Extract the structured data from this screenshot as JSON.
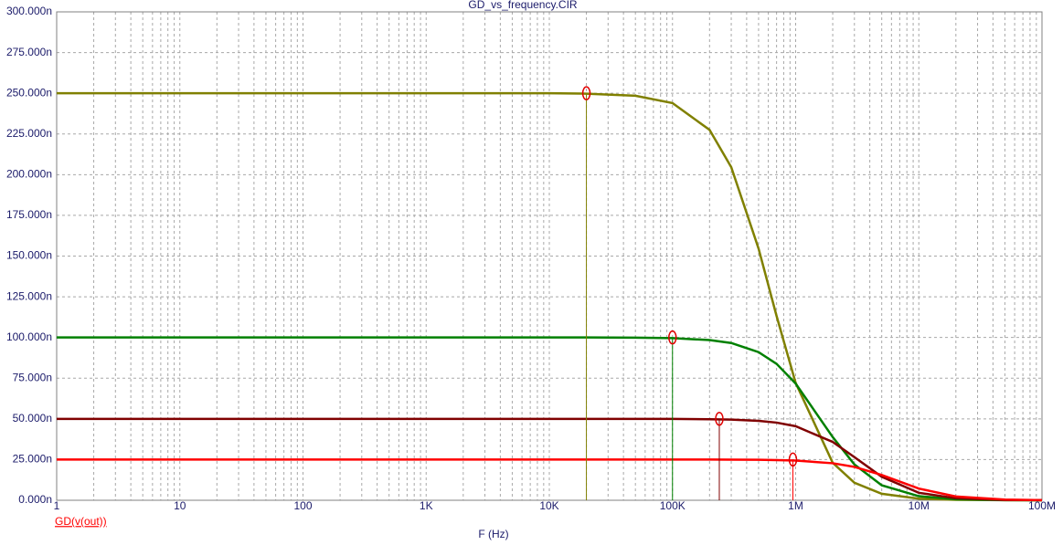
{
  "chart_data": {
    "type": "line",
    "title": "GD_vs_frequency.CIR",
    "x_label": "F (Hz)",
    "y_label": "GD(v(out))",
    "log_x": true,
    "grid": true,
    "xlim": [
      1,
      100000000
    ],
    "xticks": [
      1,
      10,
      100,
      {
        "value": 1000,
        "label": "1K"
      },
      {
        "value": 10000,
        "label": "10K"
      },
      {
        "value": 100000,
        "label": "100K"
      },
      {
        "value": 1000000,
        "label": "1M"
      },
      {
        "value": 10000000,
        "label": "10M"
      },
      {
        "value": 100000000,
        "label": "100M"
      }
    ],
    "ylim": [
      0,
      300
    ],
    "yticks": [
      {
        "value": 0,
        "label": "0.000n"
      },
      {
        "value": 25,
        "label": "25.000n"
      },
      {
        "value": 50,
        "label": "50.000n"
      },
      {
        "value": 75,
        "label": "75.000n"
      },
      {
        "value": 100,
        "label": "100.000n"
      },
      {
        "value": 125,
        "label": "125.000n"
      },
      {
        "value": 150,
        "label": "150.000n"
      },
      {
        "value": 175,
        "label": "175.000n"
      },
      {
        "value": 200,
        "label": "200.000n"
      },
      {
        "value": 225,
        "label": "225.000n"
      },
      {
        "value": 250,
        "label": "250.000n"
      },
      {
        "value": 275,
        "label": "275.000n"
      },
      {
        "value": 300,
        "label": "300.000n"
      }
    ],
    "x": [
      1,
      10,
      100,
      1000,
      10000,
      20000,
      50000,
      100000,
      200000,
      300000,
      500000,
      700000,
      1000000,
      2000000,
      3000000,
      5000000,
      10000000,
      20000000,
      50000000,
      100000000
    ],
    "series": [
      {
        "color": "#808000",
        "values": [
          250,
          250,
          250,
          250,
          250,
          249.75,
          248.5,
          244,
          227.5,
          204.6,
          154.6,
          113.2,
          72.1,
          23,
          10.8,
          4,
          1,
          0.25,
          0.04,
          0.01
        ],
        "cursor": {
          "x": 20000,
          "y": 250
        }
      },
      {
        "color": "#008000",
        "values": [
          100,
          100,
          100,
          100,
          100,
          100,
          99.9,
          99.6,
          98.4,
          96.6,
          91,
          83.8,
          71.7,
          38.8,
          22,
          9.2,
          2.5,
          0.63,
          0.1,
          0.025
        ],
        "cursor": {
          "x": 100000,
          "y": 100
        }
      },
      {
        "color": "#800000",
        "values": [
          50,
          50,
          50,
          50,
          50,
          50,
          50,
          49.95,
          49.8,
          49.56,
          48.8,
          47.7,
          45.5,
          35.8,
          26.5,
          14.4,
          4.6,
          1.23,
          0.2,
          0.05
        ],
        "cursor": {
          "x": 240000,
          "y": 50
        }
      },
      {
        "color": "#ff0000",
        "values": [
          25,
          25,
          25,
          25,
          25,
          25,
          25,
          25,
          25,
          24.95,
          24.85,
          24.7,
          24.4,
          22.75,
          20.5,
          15.5,
          7.2,
          2.3,
          0.4,
          0.1
        ],
        "cursor": {
          "x": 950000,
          "y": 25
        }
      }
    ]
  }
}
